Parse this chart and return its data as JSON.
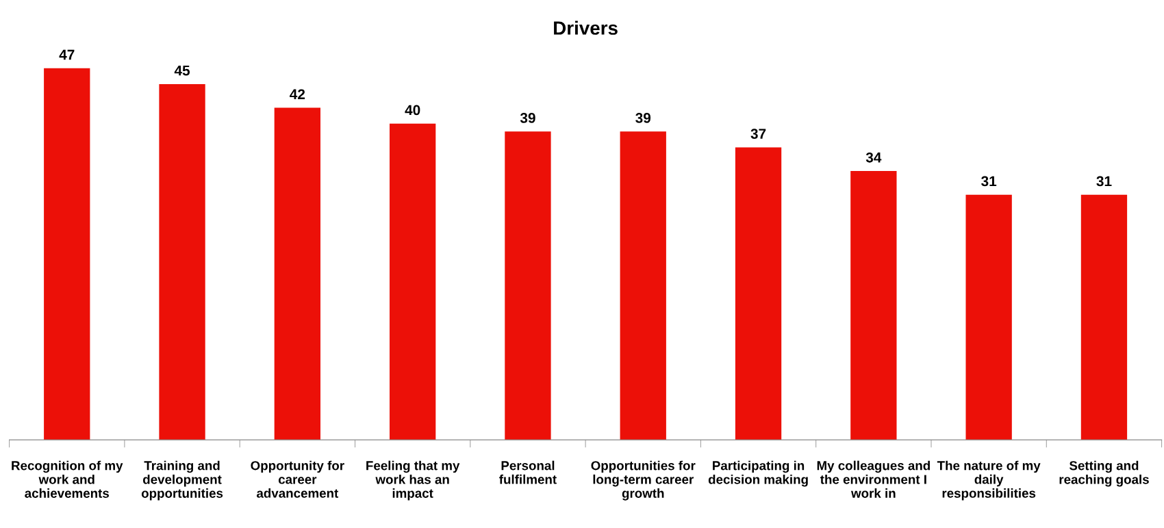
{
  "chart_data": {
    "type": "bar",
    "title": "Drivers",
    "categories": [
      "Recognition of my work and achievements",
      "Training and development opportunities",
      "Opportunity for career advancement",
      "Feeling that my work has an impact",
      "Personal fulfilment",
      "Opportunities for long-term career growth",
      "Participating in decision making",
      "My colleagues and the environment I work in",
      "The nature of my daily responsibilities",
      "Setting and reaching goals"
    ],
    "values": [
      47,
      45,
      42,
      40,
      39,
      39,
      37,
      34,
      31,
      31
    ],
    "color": "#ec1008",
    "data_labels": true,
    "grid": false,
    "legend": false
  }
}
